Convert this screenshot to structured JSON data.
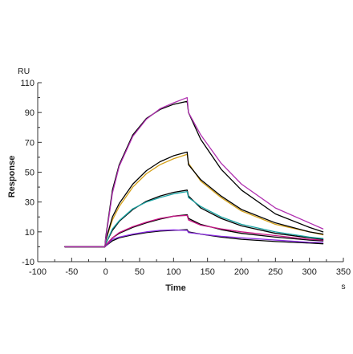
{
  "chart_data": {
    "type": "line",
    "title": "",
    "xlabel": "Time",
    "ylabel": "Response",
    "y_unit": "RU",
    "x_unit": "s",
    "xlim": [
      -100,
      350
    ],
    "ylim": [
      -10,
      110
    ],
    "x_ticks": [
      -100,
      -50,
      0,
      50,
      100,
      150,
      200,
      250,
      300,
      350
    ],
    "y_ticks": [
      -10,
      10,
      30,
      50,
      70,
      90,
      110
    ],
    "grid": false,
    "legend": "none",
    "association_end": 120,
    "series": [
      {
        "color": "#000000",
        "points": [
          [
            -60,
            0
          ],
          [
            -1,
            0
          ],
          [
            0,
            0.5
          ],
          [
            10,
            4
          ],
          [
            20,
            6
          ],
          [
            40,
            8
          ],
          [
            60,
            9.5
          ],
          [
            80,
            10.5
          ],
          [
            100,
            11
          ],
          [
            120,
            11.5
          ],
          [
            122,
            10
          ],
          [
            140,
            8.5
          ],
          [
            170,
            6.5
          ],
          [
            200,
            5
          ],
          [
            250,
            3.5
          ],
          [
            300,
            2.5
          ],
          [
            320,
            2
          ]
        ]
      },
      {
        "color": "#8a2be2",
        "points": [
          [
            -60,
            0
          ],
          [
            -1,
            0
          ],
          [
            0,
            0.5
          ],
          [
            10,
            5
          ],
          [
            20,
            6.5
          ],
          [
            40,
            8.5
          ],
          [
            60,
            10
          ],
          [
            80,
            11
          ],
          [
            100,
            11.3
          ],
          [
            120,
            11
          ],
          [
            122,
            9.5
          ],
          [
            140,
            8.5
          ],
          [
            170,
            7
          ],
          [
            200,
            6
          ],
          [
            250,
            4.5
          ],
          [
            300,
            3
          ],
          [
            320,
            3
          ]
        ]
      },
      {
        "color": "#000000",
        "points": [
          [
            -60,
            0
          ],
          [
            -1,
            0
          ],
          [
            0,
            1
          ],
          [
            10,
            6
          ],
          [
            20,
            9
          ],
          [
            40,
            13
          ],
          [
            60,
            16
          ],
          [
            80,
            18.5
          ],
          [
            100,
            20.5
          ],
          [
            120,
            21.5
          ],
          [
            122,
            19
          ],
          [
            140,
            15
          ],
          [
            170,
            11.5
          ],
          [
            200,
            9
          ],
          [
            250,
            6.5
          ],
          [
            300,
            4.5
          ],
          [
            320,
            4
          ]
        ]
      },
      {
        "color": "#c71585",
        "points": [
          [
            -60,
            0
          ],
          [
            -1,
            0
          ],
          [
            0,
            1
          ],
          [
            10,
            6
          ],
          [
            20,
            9.5
          ],
          [
            40,
            13.5
          ],
          [
            60,
            16.5
          ],
          [
            80,
            19
          ],
          [
            100,
            20.5
          ],
          [
            120,
            21
          ],
          [
            122,
            18
          ],
          [
            140,
            14.5
          ],
          [
            170,
            12
          ],
          [
            200,
            10
          ],
          [
            250,
            7.5
          ],
          [
            300,
            5
          ],
          [
            320,
            4.5
          ]
        ]
      },
      {
        "color": "#000000",
        "points": [
          [
            -60,
            0
          ],
          [
            -1,
            0
          ],
          [
            0,
            2
          ],
          [
            10,
            11
          ],
          [
            20,
            17
          ],
          [
            40,
            25
          ],
          [
            60,
            30.5
          ],
          [
            80,
            34
          ],
          [
            100,
            36.5
          ],
          [
            120,
            38
          ],
          [
            122,
            34
          ],
          [
            140,
            26
          ],
          [
            170,
            19
          ],
          [
            200,
            14
          ],
          [
            250,
            9
          ],
          [
            300,
            6
          ],
          [
            320,
            5
          ]
        ]
      },
      {
        "color": "#1aa3a3",
        "points": [
          [
            -60,
            0
          ],
          [
            -1,
            0
          ],
          [
            0,
            2
          ],
          [
            10,
            12
          ],
          [
            20,
            17.5
          ],
          [
            40,
            25.5
          ],
          [
            60,
            30
          ],
          [
            80,
            33
          ],
          [
            100,
            35.5
          ],
          [
            120,
            37
          ],
          [
            122,
            33
          ],
          [
            140,
            27
          ],
          [
            170,
            20
          ],
          [
            200,
            15
          ],
          [
            250,
            10
          ],
          [
            300,
            6.5
          ],
          [
            320,
            5.5
          ]
        ]
      },
      {
        "color": "#d4a017",
        "points": [
          [
            -60,
            0
          ],
          [
            -1,
            0
          ],
          [
            0,
            4
          ],
          [
            10,
            18
          ],
          [
            20,
            27
          ],
          [
            40,
            40
          ],
          [
            60,
            49
          ],
          [
            80,
            55
          ],
          [
            100,
            59
          ],
          [
            120,
            62
          ],
          [
            122,
            56
          ],
          [
            140,
            44
          ],
          [
            170,
            33
          ],
          [
            200,
            24
          ],
          [
            250,
            15
          ],
          [
            300,
            10
          ],
          [
            320,
            8
          ]
        ]
      },
      {
        "color": "#000000",
        "points": [
          [
            -60,
            0
          ],
          [
            -1,
            0
          ],
          [
            0,
            4
          ],
          [
            10,
            20
          ],
          [
            20,
            29
          ],
          [
            40,
            42
          ],
          [
            60,
            51
          ],
          [
            80,
            57
          ],
          [
            100,
            61
          ],
          [
            120,
            63.5
          ],
          [
            122,
            55
          ],
          [
            140,
            45
          ],
          [
            170,
            34
          ],
          [
            200,
            25
          ],
          [
            250,
            16
          ],
          [
            300,
            10
          ],
          [
            320,
            8.5
          ]
        ]
      },
      {
        "color": "#000000",
        "points": [
          [
            -60,
            0
          ],
          [
            -1,
            0
          ],
          [
            0,
            6
          ],
          [
            10,
            38
          ],
          [
            20,
            55
          ],
          [
            40,
            75
          ],
          [
            60,
            86
          ],
          [
            80,
            92
          ],
          [
            100,
            95.5
          ],
          [
            120,
            97.5
          ],
          [
            122,
            90
          ],
          [
            140,
            72
          ],
          [
            170,
            52
          ],
          [
            200,
            38
          ],
          [
            250,
            22
          ],
          [
            300,
            13
          ],
          [
            320,
            10
          ]
        ]
      },
      {
        "color": "#b02fb0",
        "points": [
          [
            -60,
            0
          ],
          [
            -1,
            0
          ],
          [
            0,
            5
          ],
          [
            10,
            36
          ],
          [
            20,
            54
          ],
          [
            40,
            74
          ],
          [
            60,
            85.5
          ],
          [
            80,
            92.5
          ],
          [
            100,
            96.5
          ],
          [
            120,
            100
          ],
          [
            122,
            90
          ],
          [
            140,
            75
          ],
          [
            170,
            56
          ],
          [
            200,
            42
          ],
          [
            250,
            26
          ],
          [
            300,
            16
          ],
          [
            320,
            12
          ]
        ]
      }
    ]
  }
}
